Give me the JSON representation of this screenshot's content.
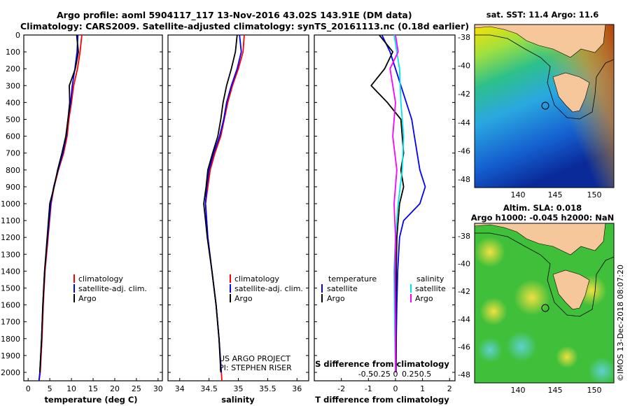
{
  "header": {
    "title_line1": "Argo profile: aoml 5904117_117 13-Nov-2016 43.02S 143.91E (DM data)",
    "title_line2": "Climatology: CARS2009. Satellite-adjusted climatology: synTS_20161113.nc (0.18d earlier)"
  },
  "colors": {
    "climatology": "#ff0000",
    "satellite": "#0000ff",
    "argo": "#000000",
    "sal_satellite": "#00e5e5",
    "sal_argo": "#ff00ff"
  },
  "legend_main": {
    "climatology": "climatology",
    "satellite": "satellite-adj. clim.",
    "argo": "Argo"
  },
  "legend_diff": {
    "temperature_header": "temperature",
    "salinity_header": "salinity",
    "satellite": "satellite",
    "argo": "Argo"
  },
  "credits": {
    "line1": "US ARGO PROJECT",
    "line2": "PI: STEPHEN RISER"
  },
  "chart_data": [
    {
      "type": "line",
      "xlabel": "temperature (deg C)",
      "ylabel": "",
      "xlim": [
        -1,
        31
      ],
      "ylim": [
        2050,
        0
      ],
      "x_ticks": [
        "0",
        "5",
        "10",
        "15",
        "20",
        "25",
        "30"
      ],
      "y_ticks": [
        "0",
        "100",
        "200",
        "300",
        "400",
        "500",
        "600",
        "700",
        "800",
        "900",
        "1000",
        "1100",
        "1200",
        "1300",
        "1400",
        "1500",
        "1600",
        "1700",
        "1800",
        "1900",
        "2000"
      ],
      "series": [
        {
          "name": "climatology",
          "color": "#ff0000",
          "x": [
            12.4,
            12.0,
            11.4,
            10.5,
            10.0,
            9.4,
            9.0,
            8.2,
            7.0,
            6.0,
            5.3,
            4.6,
            3.9,
            3.5,
            3.2,
            2.8,
            2.5
          ],
          "y": [
            0,
            100,
            200,
            300,
            400,
            500,
            600,
            700,
            800,
            900,
            1000,
            1200,
            1400,
            1600,
            1800,
            2000,
            2050
          ]
        },
        {
          "name": "satellite-adj. clim.",
          "color": "#0000ff",
          "x": [
            11.5,
            11.3,
            10.8,
            10.2,
            9.8,
            9.2,
            8.8,
            8.0,
            6.9,
            5.9,
            5.2,
            4.5,
            3.8,
            3.4,
            3.1,
            2.7,
            2.5
          ],
          "y": [
            0,
            100,
            200,
            300,
            400,
            500,
            600,
            700,
            800,
            900,
            1000,
            1200,
            1400,
            1600,
            1800,
            2000,
            2050
          ]
        },
        {
          "name": "Argo",
          "color": "#000000",
          "x": [
            11.2,
            11.6,
            10.9,
            9.5,
            9.6,
            9.2,
            8.7,
            7.8,
            6.8,
            6.0,
            5.0,
            4.4,
            3.8,
            3.4,
            3.1,
            2.7
          ],
          "y": [
            0,
            100,
            200,
            300,
            400,
            500,
            600,
            700,
            800,
            900,
            1000,
            1200,
            1400,
            1600,
            1800,
            2000
          ]
        }
      ]
    },
    {
      "type": "line",
      "xlabel": "salinity",
      "xlim": [
        33.8,
        36.2
      ],
      "ylim": [
        2050,
        0
      ],
      "x_ticks": [
        "34",
        "34.5",
        "35",
        "35.5",
        "36"
      ],
      "series": [
        {
          "name": "climatology",
          "color": "#ff0000",
          "x": [
            35.1,
            35.08,
            35.0,
            34.9,
            34.82,
            34.76,
            34.7,
            34.6,
            34.52,
            34.48,
            34.44,
            34.48,
            34.55,
            34.62,
            34.67,
            34.71,
            34.72
          ],
          "y": [
            0,
            100,
            200,
            300,
            400,
            500,
            600,
            700,
            800,
            900,
            1000,
            1200,
            1400,
            1600,
            1800,
            2000,
            2050
          ]
        },
        {
          "name": "satellite-adj. clim.",
          "color": "#0000ff",
          "x": [
            35.02,
            35.05,
            34.98,
            34.88,
            34.8,
            34.75,
            34.68,
            34.58,
            34.5,
            34.46,
            34.44,
            34.48,
            34.55,
            34.62,
            34.67,
            34.71
          ],
          "y": [
            0,
            100,
            200,
            300,
            400,
            500,
            600,
            700,
            800,
            900,
            1000,
            1200,
            1400,
            1600,
            1800,
            2000
          ]
        },
        {
          "name": "Argo",
          "color": "#000000",
          "x": [
            34.98,
            34.95,
            34.88,
            34.8,
            34.74,
            34.7,
            34.65,
            34.56,
            34.48,
            34.45,
            34.41,
            34.47,
            34.55,
            34.62,
            34.67,
            34.7
          ],
          "y": [
            0,
            100,
            200,
            300,
            400,
            500,
            600,
            700,
            800,
            900,
            1000,
            1200,
            1400,
            1600,
            1800,
            2000
          ]
        }
      ]
    },
    {
      "type": "line",
      "xlabel": "T difference from climatology",
      "xlabel_top": "S difference from climatology",
      "xlim": [
        -3,
        2.2
      ],
      "ylim": [
        2050,
        0
      ],
      "x_ticks": [
        "-2",
        "-1",
        "0",
        "1",
        "2"
      ],
      "x_ticks_top": [
        "-0.5",
        "-0.25",
        "0",
        "0.25",
        "0.5"
      ],
      "series": [
        {
          "name": "temperature satellite",
          "color": "#0000ff",
          "x": [
            -0.5,
            -0.2,
            0.0,
            0.2,
            0.4,
            0.6,
            0.7,
            0.8,
            0.9,
            1.1,
            0.9,
            0.3,
            0.15,
            0.08,
            0.05,
            0.03,
            0.02
          ],
          "y": [
            0,
            100,
            200,
            300,
            400,
            500,
            600,
            700,
            800,
            900,
            1000,
            1100,
            1200,
            1400,
            1600,
            1800,
            2000
          ]
        },
        {
          "name": "temperature Argo",
          "color": "#000000",
          "x": [
            -0.6,
            -0.1,
            -0.4,
            -0.9,
            -0.3,
            0.2,
            0.25,
            0.3,
            0.2,
            0.3,
            0.15,
            0.1,
            0.05,
            0.03,
            0.02,
            0.02,
            0.02
          ],
          "y": [
            0,
            100,
            200,
            300,
            400,
            500,
            600,
            700,
            800,
            900,
            1000,
            1100,
            1200,
            1400,
            1600,
            1800,
            2000
          ]
        },
        {
          "name": "salinity satellite",
          "color": "#00e5e5",
          "x": [
            -0.05,
            0.05,
            0.15,
            0.2,
            0.3,
            0.25,
            0.1,
            0.0,
            -0.05,
            -0.03,
            0.0
          ],
          "y": [
            0,
            100,
            200,
            400,
            600,
            800,
            1000,
            1200,
            1400,
            1700,
            2000
          ]
        },
        {
          "name": "salinity Argo",
          "color": "#ff00ff",
          "x": [
            0.0,
            0.1,
            -0.2,
            0.0,
            -0.1,
            0.05,
            -0.05,
            0.0,
            -0.02,
            0.0,
            0.0
          ],
          "y": [
            0,
            100,
            200,
            400,
            600,
            800,
            1000,
            1200,
            1400,
            1700,
            2000
          ]
        }
      ]
    }
  ],
  "maps": {
    "sst": {
      "title": "sat. SST: 11.4 Argo: 11.6",
      "x_ticks": [
        "140",
        "145",
        "150"
      ],
      "y_ticks": [
        "-38",
        "-40",
        "-42",
        "-44",
        "-46",
        "-48"
      ]
    },
    "sla": {
      "title_line1": "Altim. SLA: 0.018",
      "title_line2": "Argo h1000: -0.045 h2000: NaN",
      "x_ticks": [
        "140",
        "145",
        "150"
      ],
      "y_ticks": [
        "-38",
        "-40",
        "-42",
        "-44",
        "-46",
        "-48"
      ]
    }
  },
  "footer": {
    "stamp": "©IMOS 13-Dec-2018 08:07:20"
  }
}
